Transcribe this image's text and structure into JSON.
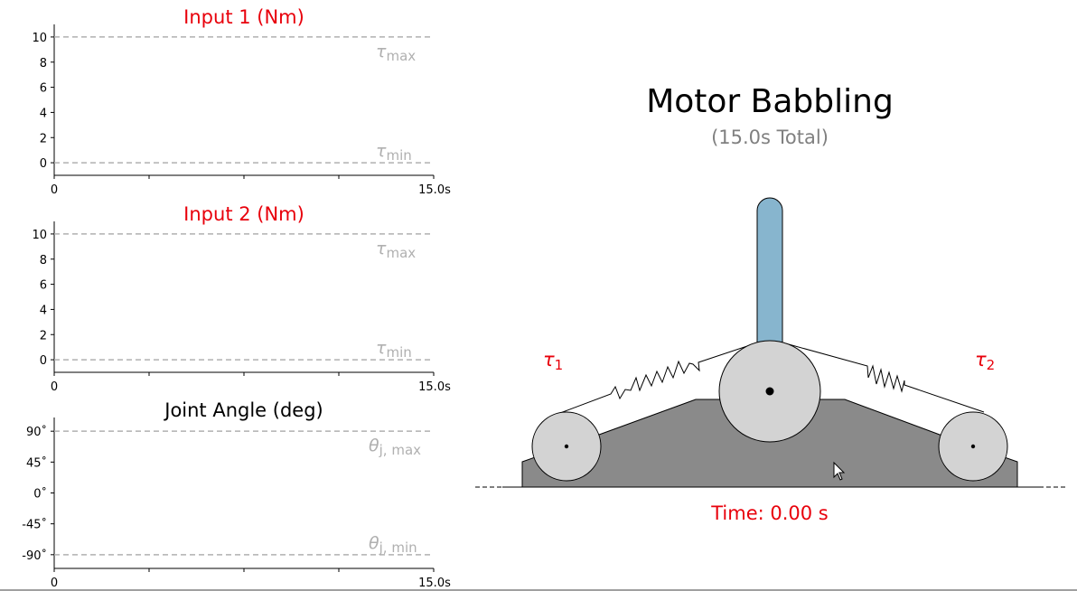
{
  "colors": {
    "title_red": "#e8000b",
    "limit_gray": "#b0b0b0",
    "pendulum_blue": "#87b5ce",
    "pulley_gray": "#d3d3d3",
    "base_gray": "#8a8a8a"
  },
  "chart_data": [
    {
      "type": "line",
      "title": "Input 1 (Nm)",
      "xlim": [
        0,
        15.0
      ],
      "ylim": [
        -1,
        11
      ],
      "x_ticks": [
        "0",
        "15.0s"
      ],
      "x_tick_values": [
        0,
        15.0
      ],
      "x_minor_ticks": [
        3.75,
        7.5,
        11.25
      ],
      "y_ticks": [
        "0",
        "2",
        "4",
        "6",
        "8",
        "10"
      ],
      "y_tick_values": [
        0,
        2,
        4,
        6,
        8,
        10
      ],
      "limits": [
        {
          "value": 10,
          "symbol": "τ",
          "sub": "max"
        },
        {
          "value": 0,
          "symbol": "τ",
          "sub": "min"
        }
      ],
      "series": []
    },
    {
      "type": "line",
      "title": "Input 2 (Nm)",
      "xlim": [
        0,
        15.0
      ],
      "ylim": [
        -1,
        11
      ],
      "x_ticks": [
        "0",
        "15.0s"
      ],
      "x_tick_values": [
        0,
        15.0
      ],
      "x_minor_ticks": [
        3.75,
        7.5,
        11.25
      ],
      "y_ticks": [
        "0",
        "2",
        "4",
        "6",
        "8",
        "10"
      ],
      "y_tick_values": [
        0,
        2,
        4,
        6,
        8,
        10
      ],
      "limits": [
        {
          "value": 10,
          "symbol": "τ",
          "sub": "max"
        },
        {
          "value": 0,
          "symbol": "τ",
          "sub": "min"
        }
      ],
      "series": []
    },
    {
      "type": "line",
      "title": "Joint Angle (deg)",
      "xlim": [
        0,
        15.0
      ],
      "ylim": [
        -110,
        110
      ],
      "x_ticks": [
        "0",
        "15.0s"
      ],
      "x_tick_values": [
        0,
        15.0
      ],
      "x_minor_ticks": [
        3.75,
        7.5,
        11.25
      ],
      "y_ticks": [
        "-90˚",
        "-45˚",
        "0˚",
        "45˚",
        "90˚"
      ],
      "y_tick_values": [
        -90,
        -45,
        0,
        45,
        90
      ],
      "limits": [
        {
          "value": 90,
          "symbol": "θ",
          "sub": "j, max"
        },
        {
          "value": -90,
          "symbol": "θ",
          "sub": "j, min"
        }
      ],
      "series": []
    }
  ],
  "animation": {
    "title": "Motor Babbling",
    "subtitle": "(15.0s Total)",
    "tau1": {
      "symbol": "τ",
      "sub": "1"
    },
    "tau2": {
      "symbol": "τ",
      "sub": "2"
    },
    "time_text": "Time: 0.00 s",
    "pendulum_angle_deg": 0
  }
}
